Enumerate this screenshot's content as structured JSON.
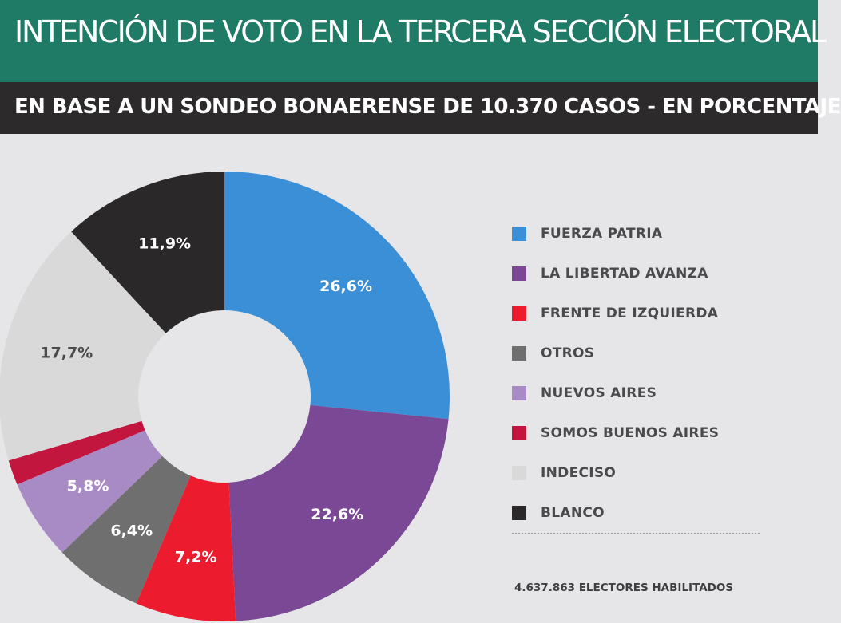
{
  "header": {
    "title": "INTENCIÓN DE VOTO EN LA TERCERA SECCIÓN ELECTORAL",
    "subtitle": "EN BASE A UN SONDEO BONAERENSE DE 10.370 CASOS - EN PORCENTAJE"
  },
  "chart_data": {
    "type": "pie",
    "categories": [
      "FUERZA PATRIA",
      "LA LIBERTAD AVANZA",
      "FRENTE DE IZQUIERDA",
      "OTROS",
      "NUEVOS AIRES",
      "SOMOS BUENOS AIRES",
      "INDECISO",
      "BLANCO"
    ],
    "values": [
      26.6,
      22.6,
      7.2,
      6.4,
      5.8,
      1.8,
      17.7,
      11.9
    ],
    "value_labels": [
      "26,6%",
      "22,6%",
      "7,2%",
      "6,4%",
      "5,8%",
      "",
      "17,7%",
      "11,9%"
    ],
    "colors": [
      "#3b8fd6",
      "#7a4894",
      "#ec1b2e",
      "#6f6f6f",
      "#a88bc4",
      "#c3163f",
      "#d9d9d9",
      "#2b2829"
    ],
    "label_colors": [
      "#ffffff",
      "#ffffff",
      "#ffffff",
      "#ffffff",
      "#ffffff",
      "#ffffff",
      "#4a4a4a",
      "#ffffff"
    ],
    "donut": true,
    "legend_position": "right"
  },
  "footer": {
    "note": "4.637.863 ELECTORES HABILITADOS"
  }
}
